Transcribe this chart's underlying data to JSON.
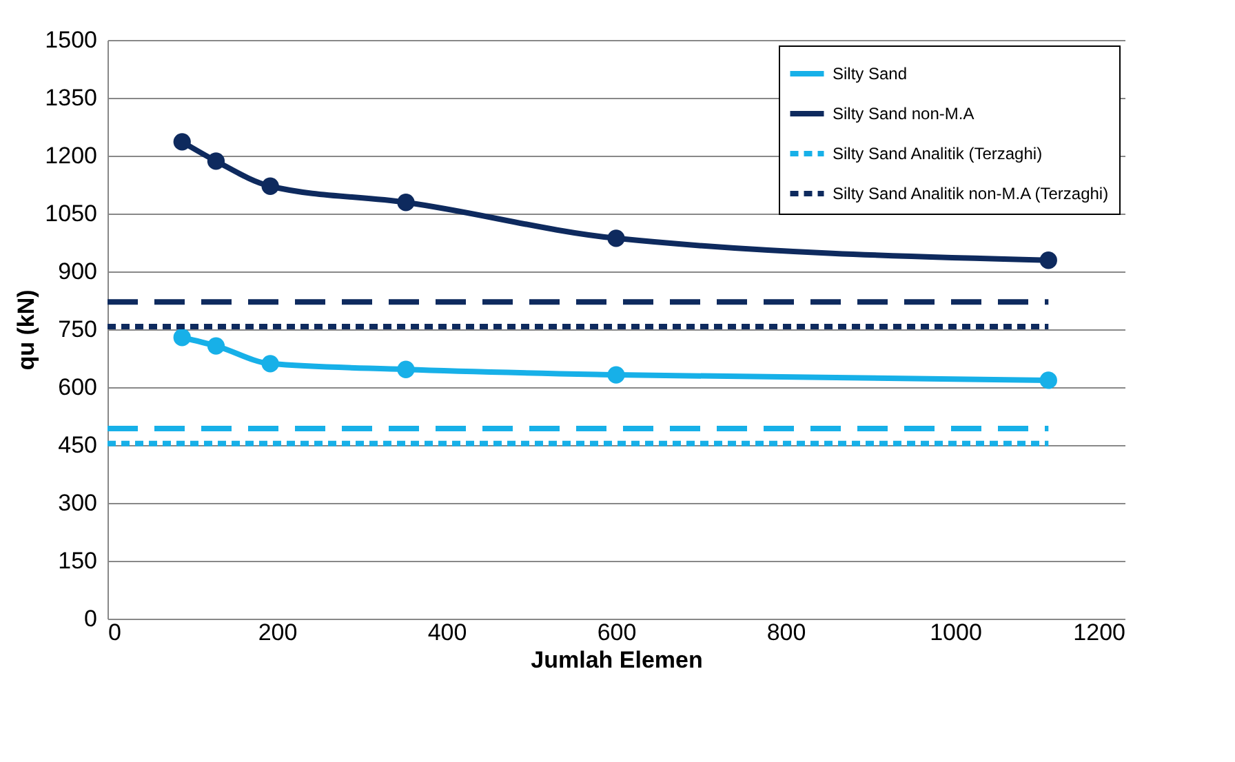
{
  "chart_data": {
    "type": "line",
    "xlabel": "Jumlah Elemen",
    "ylabel": "qu (kN)",
    "xlim": [
      0,
      1200
    ],
    "xticks": [
      0,
      200,
      400,
      600,
      800,
      1000,
      1200
    ],
    "ylim": [
      0,
      1500
    ],
    "yticks": [
      0,
      150,
      300,
      450,
      600,
      750,
      900,
      1050,
      1200,
      1350,
      1500
    ],
    "grid": "y",
    "legend": "top right",
    "series": [
      {
        "name": "Silty Sand",
        "color": "#17b0e8",
        "marker": "circle",
        "line_style": "solid",
        "x": [
          88,
          128,
          192,
          352,
          600,
          1110
        ],
        "values": [
          729,
          707,
          661,
          646,
          632,
          618
        ]
      },
      {
        "name": "Silty Sand non-M.A",
        "color": "#0e2a5e",
        "marker": "circle",
        "line_style": "solid",
        "x": [
          88,
          128,
          192,
          352,
          600,
          1110
        ],
        "values": [
          1236,
          1186,
          1121,
          1079,
          986,
          929
        ]
      },
      {
        "name": "Silty Sand Analitik (Terzaghi)",
        "color": "#17b0e8",
        "marker": "none",
        "line_style": "dotted",
        "x": [
          0,
          1110
        ],
        "values": [
          454,
          454
        ]
      },
      {
        "name": "Silty Sand Analitik non-M.A (Terzaghi)",
        "color": "#0e2a5e",
        "marker": "none",
        "line_style": "dotted",
        "x": [
          0,
          1110
        ],
        "values": [
          757,
          757
        ]
      },
      {
        "color": "#17b0e8",
        "marker": "none",
        "line_style": "dashed",
        "x": [
          0,
          1110
        ],
        "values": [
          493,
          493
        ]
      },
      {
        "color": "#0e2a5e",
        "marker": "none",
        "line_style": "dashed",
        "x": [
          0,
          1110
        ],
        "values": [
          821,
          821
        ]
      }
    ]
  }
}
